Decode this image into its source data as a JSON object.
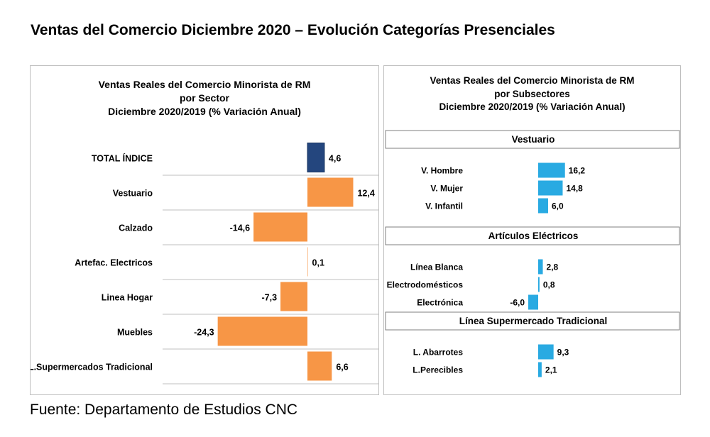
{
  "page": {
    "title": "Ventas del Comercio Diciembre 2020 – Evolución Categorías Presenciales",
    "source": "Fuente: Departamento de Estudios CNC"
  },
  "colors": {
    "total": "#24467e",
    "sector": "#f79646",
    "subsector": "#29aae2",
    "separator": "#bfbfbf"
  },
  "chart_data": [
    {
      "type": "bar",
      "orientation": "horizontal",
      "title_lines": [
        "Ventas Reales del Comercio Minorista de RM",
        "por Sector",
        "Diciembre 2020/2019 (% Variación Anual)"
      ],
      "categories": [
        "TOTAL ÍNDICE",
        "Vestuario",
        "Calzado",
        "Artefac. Electricos",
        "Linea Hogar",
        "Muebles",
        "L.Supermercados Tradicional"
      ],
      "values": [
        4.6,
        12.4,
        -14.6,
        0.1,
        -7.3,
        -24.3,
        6.6
      ],
      "value_labels": [
        "4,6",
        "12,4",
        "-14,6",
        "0,1",
        "-7,3",
        "-24,3",
        "6,6"
      ],
      "highlight_index": 0,
      "xlim": [
        -28,
        14
      ]
    },
    {
      "type": "bar",
      "orientation": "horizontal",
      "title_lines": [
        "Ventas Reales del Comercio Minorista de RM",
        "por Subsectores",
        "Diciembre 2020/2019 (% Variación Anual)"
      ],
      "groups": [
        {
          "name": "Vestuario",
          "categories": [
            "V. Hombre",
            "V. Mujer",
            "V. Infantil"
          ],
          "values": [
            16.2,
            14.8,
            6.0
          ],
          "value_labels": [
            "16,2",
            "14,8",
            "6,0"
          ]
        },
        {
          "name": "Artículos Eléctricos",
          "categories": [
            "Línea Blanca",
            "Electrodomésticos",
            "Electrónica"
          ],
          "values": [
            2.8,
            0.8,
            -6.0
          ],
          "value_labels": [
            "2,8",
            "0,8",
            "-6,0"
          ]
        },
        {
          "name": "Línea Supermercado Tradicional",
          "categories": [
            "L. Abarrotes",
            "L.Perecibles"
          ],
          "values": [
            9.3,
            2.1
          ],
          "value_labels": [
            "9,3",
            "2,1"
          ]
        }
      ],
      "xlim": [
        -10,
        20
      ]
    }
  ]
}
